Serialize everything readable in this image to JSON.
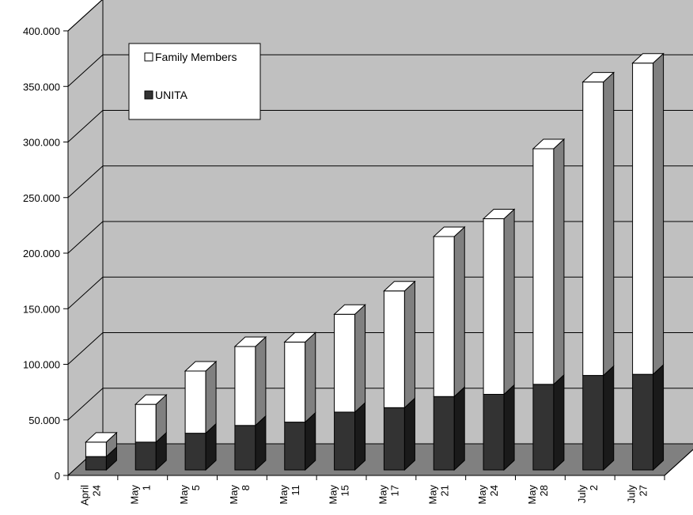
{
  "chart_data": {
    "type": "bar",
    "stacked": true,
    "three_d": true,
    "title": "",
    "xlabel": "",
    "ylabel": "",
    "ylim": [
      0,
      400000
    ],
    "grid": true,
    "legend_position": "top-left",
    "y_ticks": [
      "0",
      "50.000",
      "100.000",
      "150.000",
      "200.000",
      "250.000",
      "300.000",
      "350.000",
      "400.000"
    ],
    "categories": [
      [
        "April",
        "24"
      ],
      [
        "May",
        "1"
      ],
      [
        "May",
        "5"
      ],
      [
        "May",
        "8"
      ],
      [
        "May",
        "11"
      ],
      [
        "May",
        "15"
      ],
      [
        "May",
        "17"
      ],
      [
        "May",
        "21"
      ],
      [
        "May",
        "24"
      ],
      [
        "May",
        "28"
      ],
      [
        "July",
        "2"
      ],
      [
        "July",
        "27"
      ]
    ],
    "series": [
      {
        "name": "UNITA",
        "color": "#333333",
        "side_color": "#1a1a1a",
        "values": [
          12000,
          25000,
          33000,
          40000,
          43000,
          52000,
          56000,
          66000,
          68000,
          77000,
          85000,
          86000
        ]
      },
      {
        "name": "Family Members",
        "color": "#ffffff",
        "side_color": "#808080",
        "values": [
          13000,
          34000,
          56000,
          71000,
          72000,
          88000,
          105000,
          144000,
          158000,
          212000,
          264000,
          280000
        ]
      }
    ],
    "legend_order": [
      "Family Members",
      "UNITA"
    ]
  },
  "colors": {
    "back_wall": "#c0c0c0",
    "side_wall": "#c0c0c0",
    "floor": "#808080",
    "gridline": "#000000"
  }
}
